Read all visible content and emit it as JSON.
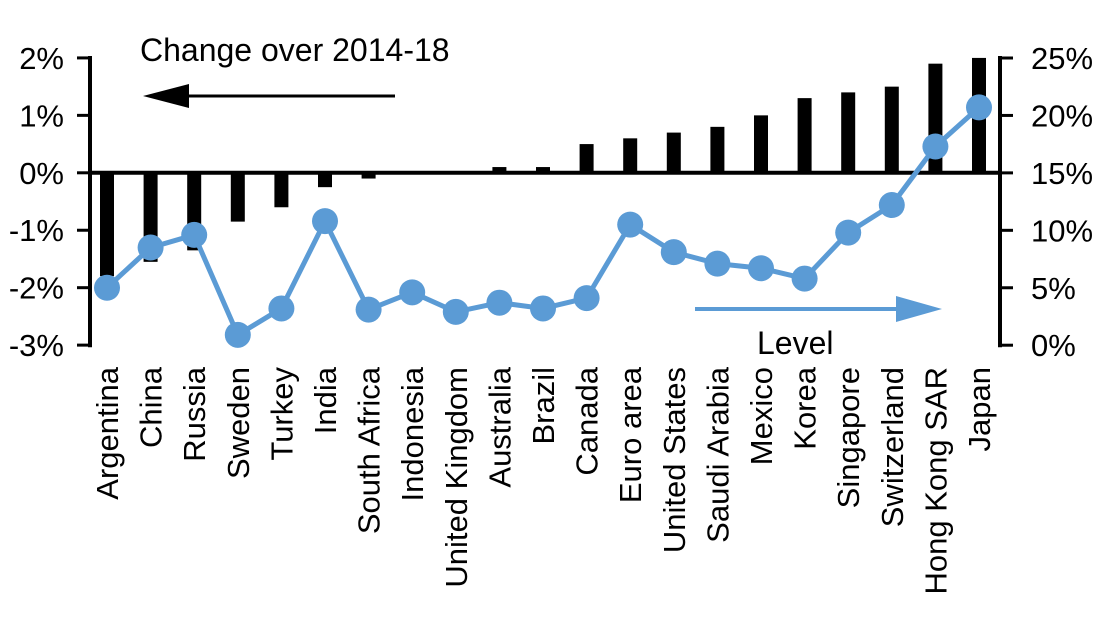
{
  "figure": {
    "title": "Change over 2014-18",
    "level_label": "Level",
    "colors": {
      "bar": "#000000",
      "line": "#5B9BD5",
      "axis": "#000000",
      "text": "#000000",
      "background": "#ffffff"
    }
  },
  "chart_data": {
    "type": "combo-bar-line",
    "categories": [
      "Argentina",
      "China",
      "Russia",
      "Sweden",
      "Turkey",
      "India",
      "South Africa",
      "Indonesia",
      "United Kingdom",
      "Australia",
      "Brazil",
      "Canada",
      "Euro area",
      "United States",
      "Saudi Arabia",
      "Mexico",
      "Korea",
      "Singapore",
      "Switzerland",
      "Hong Kong SAR",
      "Japan"
    ],
    "series": [
      {
        "name": "Change over 2014-18",
        "type": "bar",
        "axis": "left",
        "values": [
          -1.8,
          -1.55,
          -1.35,
          -0.85,
          -0.6,
          -0.25,
          -0.1,
          0,
          0,
          0.1,
          0.1,
          0.5,
          0.6,
          0.7,
          0.8,
          1.0,
          1.3,
          1.4,
          1.5,
          1.9,
          2.0
        ]
      },
      {
        "name": "Level",
        "type": "line",
        "axis": "right",
        "values": [
          5.0,
          8.5,
          9.6,
          0.9,
          3.2,
          10.8,
          3.1,
          4.6,
          2.9,
          3.7,
          3.2,
          4.1,
          10.5,
          8.1,
          7.1,
          6.7,
          5.8,
          9.8,
          12.2,
          17.3,
          20.7
        ]
      }
    ],
    "left_axis": {
      "tick_labels": [
        "2%",
        "1%",
        "0%",
        "-1%",
        "-2%",
        "-3%"
      ],
      "tick_values": [
        2,
        1,
        0,
        -1,
        -2,
        -3
      ],
      "min": -3,
      "max": 2,
      "unit": "%"
    },
    "right_axis": {
      "tick_labels": [
        "25%",
        "20%",
        "15%",
        "10%",
        "5%",
        "0%"
      ],
      "tick_values": [
        25,
        20,
        15,
        10,
        5,
        0
      ],
      "min": 0,
      "max": 25,
      "unit": "%"
    },
    "annotations": {
      "bar_series_arrow_direction": "left",
      "line_series_arrow_direction": "right"
    },
    "grid": false,
    "legend_position": "in-plot-text-with-arrows"
  }
}
